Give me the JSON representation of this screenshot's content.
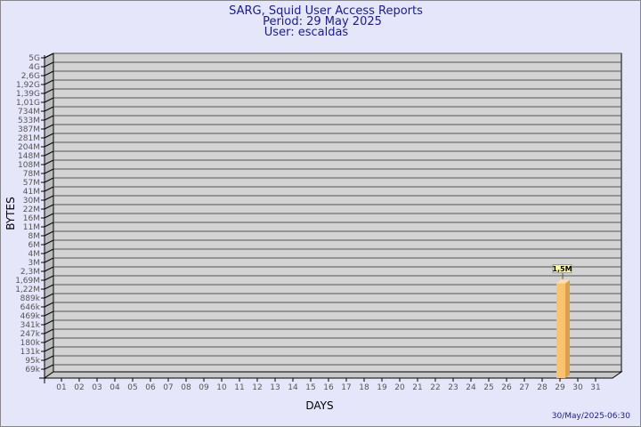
{
  "chart_data": {
    "type": "bar",
    "title": [
      "SARG, Squid User Access Reports",
      "Period: 29 May 2025",
      "User: escaldas"
    ],
    "xlabel": "DAYS",
    "ylabel": "BYTES",
    "y_scale": "log",
    "grid": true,
    "categories": [
      "01",
      "02",
      "03",
      "04",
      "05",
      "06",
      "07",
      "08",
      "09",
      "10",
      "11",
      "12",
      "13",
      "14",
      "15",
      "16",
      "17",
      "18",
      "19",
      "20",
      "21",
      "22",
      "23",
      "24",
      "25",
      "26",
      "27",
      "28",
      "29",
      "30",
      "31"
    ],
    "y_tick_labels": [
      "5G",
      "4G",
      "2,6G",
      "1,92G",
      "1,39G",
      "1,01G",
      "734M",
      "533M",
      "387M",
      "281M",
      "204M",
      "148M",
      "108M",
      "78M",
      "57M",
      "41M",
      "30M",
      "22M",
      "16M",
      "11M",
      "8M",
      "6M",
      "4M",
      "3M",
      "2,3M",
      "1,69M",
      "1,22M",
      "889k",
      "646k",
      "469k",
      "341k",
      "247k",
      "180k",
      "131k",
      "95k",
      "69k"
    ],
    "y_tick_values": [
      5000000000.0,
      4000000000.0,
      2600000000.0,
      1920000000.0,
      1390000000.0,
      1010000000.0,
      734000000.0,
      533000000.0,
      387000000.0,
      281000000.0,
      204000000.0,
      148000000.0,
      108000000.0,
      78000000.0,
      57000000.0,
      41000000.0,
      30000000.0,
      22000000.0,
      16000000.0,
      11000000.0,
      8000000.0,
      6000000.0,
      4000000.0,
      3000000.0,
      2300000.0,
      1690000.0,
      1220000.0,
      889000.0,
      646000.0,
      469000.0,
      341000.0,
      247000.0,
      180000.0,
      131000.0,
      95000.0,
      69000.0
    ],
    "series": [
      {
        "points": [
          {
            "x": "29",
            "value": 1500000,
            "label": "1,5M"
          }
        ]
      }
    ],
    "colors": {
      "bar": "#fdc36a",
      "bar_side": "#dca04c",
      "plot": "#d3d3d3",
      "background": "#e6e6fa"
    }
  },
  "footer": {
    "timestamp": "30/May/2025-06:30"
  }
}
